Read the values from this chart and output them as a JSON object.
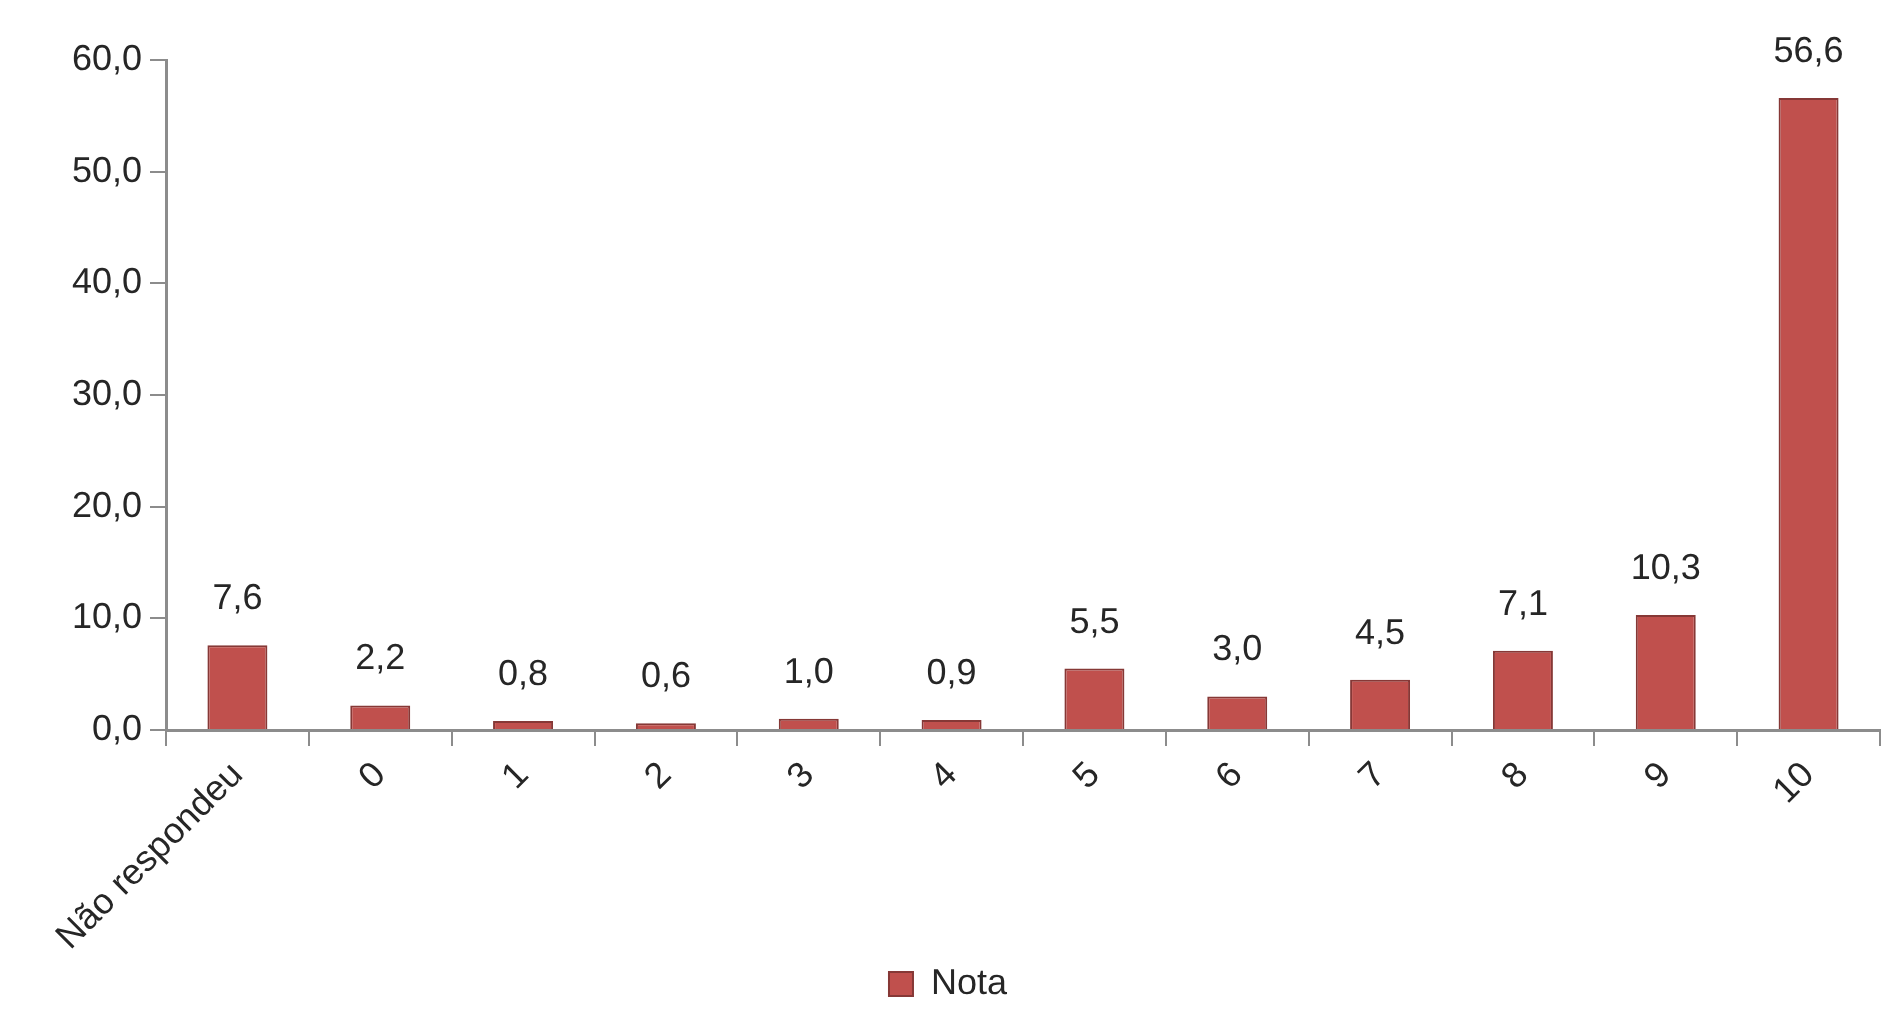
{
  "chart_data": {
    "type": "bar",
    "categories": [
      "Não respondeu",
      "0",
      "1",
      "2",
      "3",
      "4",
      "5",
      "6",
      "7",
      "8",
      "9",
      "10"
    ],
    "series": [
      {
        "name": "Nota",
        "color": "#c0504d",
        "values": [
          7.6,
          2.2,
          0.8,
          0.6,
          1.0,
          0.9,
          5.5,
          3.0,
          4.5,
          7.1,
          10.3,
          56.6
        ],
        "value_labels": [
          "7,6",
          "2,2",
          "0,8",
          "0,6",
          "1,0",
          "0,9",
          "5,5",
          "3,0",
          "4,5",
          "7,1",
          "10,3",
          "56,6"
        ]
      }
    ],
    "ylim": [
      0,
      60
    ],
    "yticks": [
      {
        "value": 0,
        "label": "0,0"
      },
      {
        "value": 10,
        "label": "10,0"
      },
      {
        "value": 20,
        "label": "20,0"
      },
      {
        "value": 30,
        "label": "30,0"
      },
      {
        "value": 40,
        "label": "40,0"
      },
      {
        "value": 50,
        "label": "50,0"
      },
      {
        "value": 60,
        "label": "60,0"
      }
    ],
    "grid": false,
    "legend": "bottom"
  }
}
